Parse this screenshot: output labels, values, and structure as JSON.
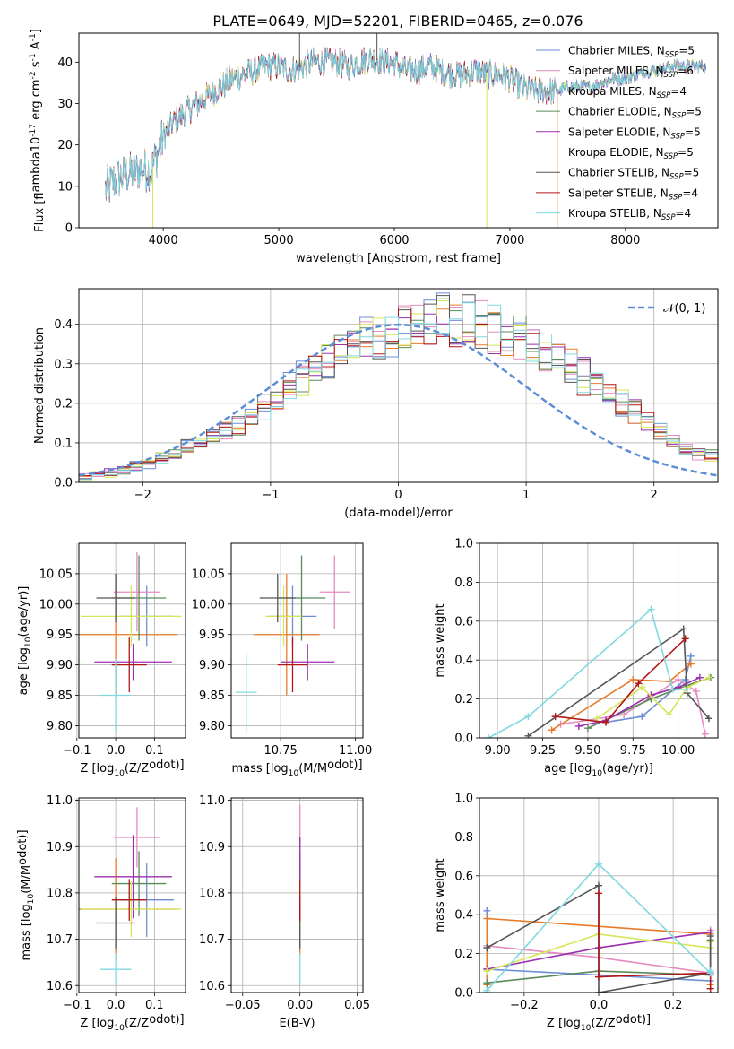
{
  "figure": {
    "title": "PLATE=0649, MJD=52201, FIBERID=0465, z=0.076"
  },
  "colors": {
    "series": [
      "#6c8ed6",
      "#e58ac2",
      "#e87b2a",
      "#5b8a5a",
      "#9b2fae",
      "#d6e65a",
      "#555555",
      "#b01818",
      "#80d9e0"
    ],
    "gaussian": "#5b8ed6",
    "grid": "#b0b0b0"
  },
  "chart_data": [
    {
      "id": "spectrum",
      "type": "line",
      "xlabel": "wavelength [Angstrom, rest frame]",
      "ylabel": "Flux [f$_\\lambda$10$^{-17}$ erg cm$^{-2}$ s$^{-1}$ A$^{-1}$]",
      "xlim": [
        3270,
        8800
      ],
      "ylim": [
        0,
        47
      ],
      "xticks": [
        4000,
        5000,
        6000,
        7000,
        8000
      ],
      "yticks": [
        0,
        10,
        20,
        30,
        40
      ],
      "grid": false,
      "legend_position": "top-right",
      "legend": [
        {
          "text": "Chabrier MILES, N",
          "sub": "SSP",
          "tail": "=5"
        },
        {
          "text": "Salpeter MILES, N",
          "sub": "SSP",
          "tail": "=6"
        },
        {
          "text": "Kroupa MILES, N",
          "sub": "SSP",
          "tail": "=4"
        },
        {
          "text": "Chabrier ELODIE, N",
          "sub": "SSP",
          "tail": "=5"
        },
        {
          "text": "Salpeter ELODIE, N",
          "sub": "SSP",
          "tail": "=5"
        },
        {
          "text": "Kroupa ELODIE, N",
          "sub": "SSP",
          "tail": "=5"
        },
        {
          "text": "Chabrier STELIB, N",
          "sub": "SSP",
          "tail": "=5"
        },
        {
          "text": "Salpeter STELIB, N",
          "sub": "SSP",
          "tail": "=4"
        },
        {
          "text": "Kroupa STELIB, N",
          "sub": "SSP",
          "tail": "=4"
        }
      ],
      "continuum": {
        "x": [
          3500,
          3600,
          3700,
          3800,
          3900,
          4000,
          4100,
          4200,
          4300,
          4400,
          4500,
          4600,
          4700,
          4800,
          4900,
          5000,
          5100,
          5200,
          5300,
          5400,
          5500,
          5600,
          5700,
          5800,
          5900,
          6000,
          6100,
          6200,
          6300,
          6400,
          6500,
          6600,
          6700,
          6800,
          6900,
          7000,
          7100,
          7200,
          7300,
          7400,
          7500,
          7600,
          7700,
          7800,
          7900,
          8000,
          8100,
          8200,
          8300,
          8400,
          8500,
          8600,
          8700
        ],
        "y": [
          9,
          12,
          13,
          14,
          14,
          22,
          26,
          28,
          30,
          32,
          34,
          36,
          37,
          38,
          39,
          39,
          38,
          39,
          40,
          40,
          40,
          39,
          40,
          41,
          40,
          40,
          38,
          38,
          39,
          38,
          37,
          37,
          38,
          37,
          37,
          36,
          34,
          33,
          33,
          33,
          34,
          34,
          34,
          35,
          36,
          36,
          37,
          38,
          38,
          39,
          39,
          39,
          39
        ]
      },
      "spikes": [
        {
          "x": 5180,
          "y": 47,
          "series": 6
        },
        {
          "x": 5850,
          "y": 47,
          "series": 6
        },
        {
          "x": 3910,
          "y": 0,
          "series": 5
        },
        {
          "x": 6800,
          "y": 0,
          "series": 5
        },
        {
          "x": 7410,
          "y": 0,
          "series": 2
        }
      ]
    },
    {
      "id": "residuals",
      "type": "histogram",
      "xlabel": "(data-model)/error",
      "ylabel": "Normed distribution",
      "xlim": [
        -2.5,
        2.5
      ],
      "ylim": [
        0,
        0.49
      ],
      "xticks": [
        -2,
        -1,
        0,
        1,
        2
      ],
      "yticks": [
        0.0,
        0.1,
        0.2,
        0.3,
        0.4
      ],
      "grid": true,
      "legend_position": "top-right",
      "gaussian_label": "$\\mathcal{N}(0, 1)$",
      "bin_width": 0.1,
      "bins_start": -2.5,
      "base": [
        0.015,
        0.02,
        0.025,
        0.03,
        0.04,
        0.05,
        0.06,
        0.07,
        0.09,
        0.1,
        0.12,
        0.13,
        0.15,
        0.17,
        0.19,
        0.21,
        0.24,
        0.26,
        0.28,
        0.3,
        0.32,
        0.34,
        0.36,
        0.37,
        0.38,
        0.39,
        0.4,
        0.41,
        0.41,
        0.41,
        0.41,
        0.4,
        0.39,
        0.38,
        0.37,
        0.35,
        0.33,
        0.31,
        0.29,
        0.27,
        0.25,
        0.22,
        0.2,
        0.18,
        0.16,
        0.13,
        0.1,
        0.085,
        0.075,
        0.065,
        0.055,
        0.045,
        0.035,
        0.03,
        0.025,
        0.02,
        0.015,
        0.01,
        0.01,
        0.01
      ]
    },
    {
      "id": "age-vs-Z",
      "type": "scatter",
      "xlabel": "Z [log$_{10}$(Z/Z$_\\odot$)]",
      "ylabel": "age  [log$_{10}$($age/yr$)]",
      "xlim": [
        -0.095,
        0.18
      ],
      "ylim": [
        9.78,
        10.1
      ],
      "xticks": [
        -0.1,
        0.0,
        0.1
      ],
      "yticks": [
        9.8,
        9.85,
        9.9,
        9.95,
        10.0,
        10.05
      ],
      "grid": true,
      "points": [
        {
          "x": 0.08,
          "y": 9.98,
          "xerr": 0.07,
          "yerr": 0.05
        },
        {
          "x": 0.055,
          "y": 10.02,
          "xerr": 0.06,
          "yerr": 0.065
        },
        {
          "x": 0.0,
          "y": 9.95,
          "xerr": 0.16,
          "yerr": 0.1
        },
        {
          "x": 0.06,
          "y": 10.01,
          "xerr": 0.07,
          "yerr": 0.07
        },
        {
          "x": 0.045,
          "y": 9.905,
          "xerr": 0.1,
          "yerr": 0.03
        },
        {
          "x": 0.04,
          "y": 9.98,
          "xerr": 0.13,
          "yerr": 0.05
        },
        {
          "x": 0.0,
          "y": 10.01,
          "xerr": 0.05,
          "yerr": 0.04
        },
        {
          "x": 0.035,
          "y": 9.9,
          "xerr": 0.045,
          "yerr": 0.045
        },
        {
          "x": 0.0,
          "y": 9.85,
          "xerr": 0.04,
          "yerr": 0.06
        }
      ]
    },
    {
      "id": "age-vs-mass",
      "type": "scatter",
      "xlabel": "mass [log$_{10}$($M/M_\\odot$)]",
      "ylabel": "",
      "xlim": [
        10.585,
        11.025
      ],
      "ylim": [
        9.78,
        10.1
      ],
      "xticks": [
        10.75,
        11.0
      ],
      "yticks": [
        9.8,
        9.85,
        9.9,
        9.95,
        10.0,
        10.05
      ],
      "grid": true,
      "points": [
        {
          "x": 10.79,
          "y": 9.98,
          "xerr": 0.08,
          "yerr": 0.05
        },
        {
          "x": 10.93,
          "y": 10.02,
          "xerr": 0.05,
          "yerr": 0.06
        },
        {
          "x": 10.77,
          "y": 9.95,
          "xerr": 0.11,
          "yerr": 0.1
        },
        {
          "x": 10.82,
          "y": 10.01,
          "xerr": 0.08,
          "yerr": 0.07
        },
        {
          "x": 10.84,
          "y": 9.905,
          "xerr": 0.09,
          "yerr": 0.03
        },
        {
          "x": 10.76,
          "y": 9.98,
          "xerr": 0.06,
          "yerr": 0.05
        },
        {
          "x": 10.74,
          "y": 10.01,
          "xerr": 0.06,
          "yerr": 0.04
        },
        {
          "x": 10.79,
          "y": 9.9,
          "xerr": 0.05,
          "yerr": 0.045
        },
        {
          "x": 10.635,
          "y": 9.855,
          "xerr": 0.035,
          "yerr": 0.065
        }
      ]
    },
    {
      "id": "weight-vs-age",
      "type": "line",
      "xlabel": "age  [log$_{10}$($age/yr$)]",
      "ylabel": "mass weight",
      "xlim": [
        8.9,
        10.22
      ],
      "ylim": [
        0,
        1.0
      ],
      "xticks": [
        9.0,
        9.25,
        9.5,
        9.75,
        10.0
      ],
      "yticks": [
        0.0,
        0.2,
        0.4,
        0.6,
        0.8,
        1.0
      ],
      "grid": true,
      "series": [
        {
          "name": "Chabrier MILES",
          "x": [
            9.6,
            9.8,
            10.04,
            10.07
          ],
          "y": [
            0.08,
            0.11,
            0.3,
            0.42
          ]
        },
        {
          "name": "Salpeter MILES",
          "x": [
            9.35,
            9.7,
            10.0,
            10.1,
            10.15
          ],
          "y": [
            0.07,
            0.12,
            0.3,
            0.24,
            0.02
          ]
        },
        {
          "name": "Kroupa MILES",
          "x": [
            9.3,
            9.75,
            9.95,
            10.07
          ],
          "y": [
            0.04,
            0.3,
            0.29,
            0.38
          ]
        },
        {
          "name": "Chabrier ELODIE",
          "x": [
            9.5,
            9.85,
            10.05,
            10.18
          ],
          "y": [
            0.05,
            0.2,
            0.27,
            0.31
          ]
        },
        {
          "name": "Salpeter ELODIE",
          "x": [
            9.45,
            9.6,
            9.85,
            10.0,
            10.12
          ],
          "y": [
            0.06,
            0.09,
            0.22,
            0.26,
            0.31
          ]
        },
        {
          "name": "Kroupa ELODIE",
          "x": [
            9.55,
            9.8,
            9.95,
            10.05,
            10.17
          ],
          "y": [
            0.1,
            0.26,
            0.12,
            0.26,
            0.31
          ]
        },
        {
          "name": "Chabrier STELIB",
          "x": [
            9.17,
            10.03,
            10.05,
            10.17
          ],
          "y": [
            0.01,
            0.56,
            0.23,
            0.1
          ]
        },
        {
          "name": "Salpeter STELIB",
          "x": [
            9.32,
            9.6,
            9.78,
            10.04
          ],
          "y": [
            0.11,
            0.08,
            0.28,
            0.51
          ]
        },
        {
          "name": "Kroupa STELIB",
          "x": [
            8.95,
            9.17,
            9.85,
            9.97,
            10.05
          ],
          "y": [
            0.0,
            0.11,
            0.66,
            0.25,
            0.25
          ]
        }
      ]
    },
    {
      "id": "mass-vs-Z",
      "type": "scatter",
      "xlabel": "Z [log$_{10}$(Z/Z$_\\odot$)]",
      "ylabel": "mass [log$_{10}$($M/M_\\odot$)]",
      "xlim": [
        -0.095,
        0.18
      ],
      "ylim": [
        10.585,
        11.005
      ],
      "xticks": [
        -0.1,
        0.0,
        0.1
      ],
      "yticks": [
        10.6,
        10.7,
        10.8,
        10.9,
        11.0
      ],
      "grid": true,
      "points": [
        {
          "x": 0.08,
          "y": 10.785,
          "xerr": 0.07,
          "yerr": 0.08
        },
        {
          "x": 0.055,
          "y": 10.92,
          "xerr": 0.06,
          "yerr": 0.065
        },
        {
          "x": 0.0,
          "y": 10.765,
          "xerr": 0.16,
          "yerr": 0.11
        },
        {
          "x": 0.06,
          "y": 10.82,
          "xerr": 0.07,
          "yerr": 0.07
        },
        {
          "x": 0.045,
          "y": 10.835,
          "xerr": 0.1,
          "yerr": 0.09
        },
        {
          "x": 0.04,
          "y": 10.765,
          "xerr": 0.13,
          "yerr": 0.06
        },
        {
          "x": 0.0,
          "y": 10.735,
          "xerr": 0.05,
          "yerr": 0.055
        },
        {
          "x": 0.035,
          "y": 10.785,
          "xerr": 0.045,
          "yerr": 0.045
        },
        {
          "x": 0.0,
          "y": 10.635,
          "xerr": 0.04,
          "yerr": 0.035
        }
      ]
    },
    {
      "id": "mass-vs-EBV",
      "type": "scatter",
      "xlabel": "E(B-V)",
      "ylabel": "",
      "xlim": [
        -0.06,
        0.055
      ],
      "ylim": [
        10.585,
        11.005
      ],
      "xticks": [
        -0.05,
        0.0,
        0.05
      ],
      "yticks": [
        10.6,
        10.7,
        10.8,
        10.9,
        11.0
      ],
      "grid": true,
      "points": [
        {
          "x": 0.0,
          "y": 10.785,
          "xerr": 0,
          "yerr": 0.08
        },
        {
          "x": 0.0,
          "y": 10.92,
          "xerr": 0,
          "yerr": 0.07
        },
        {
          "x": 0.0,
          "y": 10.765,
          "xerr": 0,
          "yerr": 0.1
        },
        {
          "x": 0.0,
          "y": 10.82,
          "xerr": 0,
          "yerr": 0.07
        },
        {
          "x": 0.0,
          "y": 10.835,
          "xerr": 0,
          "yerr": 0.085
        },
        {
          "x": 0.0,
          "y": 10.765,
          "xerr": 0,
          "yerr": 0.06
        },
        {
          "x": 0.0,
          "y": 10.735,
          "xerr": 0,
          "yerr": 0.055
        },
        {
          "x": 0.0,
          "y": 10.785,
          "xerr": 0,
          "yerr": 0.045
        },
        {
          "x": 0.0,
          "y": 10.635,
          "xerr": 0,
          "yerr": 0.035
        }
      ]
    },
    {
      "id": "weight-vs-Z",
      "type": "line",
      "xlabel": "Z [log$_{10}$(Z/Z$_\\odot$)]",
      "ylabel": "mass weight",
      "xlim": [
        -0.32,
        0.32
      ],
      "ylim": [
        0,
        1.0
      ],
      "xticks": [
        -0.2,
        0.0,
        0.2
      ],
      "yticks": [
        0.0,
        0.2,
        0.4,
        0.6,
        0.8,
        1.0
      ],
      "grid": true,
      "series": [
        {
          "name": "Chabrier MILES",
          "x": [
            -0.3,
            -0.3,
            0.0,
            0.3
          ],
          "y": [
            0.42,
            0.12,
            0.09,
            0.06
          ]
        },
        {
          "name": "Salpeter MILES",
          "x": [
            -0.3,
            0.0,
            0.3,
            0.3
          ],
          "y": [
            0.24,
            0.18,
            0.1,
            0.32
          ]
        },
        {
          "name": "Kroupa MILES",
          "x": [
            -0.3,
            -0.3,
            0.3,
            0.3
          ],
          "y": [
            0.04,
            0.38,
            0.3,
            0.04
          ]
        },
        {
          "name": "Chabrier ELODIE",
          "x": [
            -0.3,
            0.0,
            0.3,
            0.3
          ],
          "y": [
            0.05,
            0.11,
            0.09,
            0.27
          ]
        },
        {
          "name": "Salpeter ELODIE",
          "x": [
            -0.3,
            0.0,
            0.3,
            0.3
          ],
          "y": [
            0.12,
            0.23,
            0.31,
            0.09
          ]
        },
        {
          "name": "Kroupa ELODIE",
          "x": [
            -0.3,
            0.0,
            0.3,
            0.3
          ],
          "y": [
            0.11,
            0.3,
            0.23,
            0.26
          ]
        },
        {
          "name": "Chabrier STELIB",
          "x": [
            -0.3,
            0.0,
            0.0,
            0.3,
            0.3
          ],
          "y": [
            0.23,
            0.55,
            0.0,
            0.1,
            0.29
          ]
        },
        {
          "name": "Salpeter STELIB",
          "x": [
            0.0,
            0.0,
            0.3,
            0.3
          ],
          "y": [
            0.51,
            0.08,
            0.1,
            0.02
          ]
        },
        {
          "name": "Kroupa STELIB",
          "x": [
            -0.3,
            -0.3,
            0.0,
            0.3,
            0.3
          ],
          "y": [
            0.0,
            0.01,
            0.66,
            0.1,
            0.11
          ]
        }
      ]
    }
  ]
}
